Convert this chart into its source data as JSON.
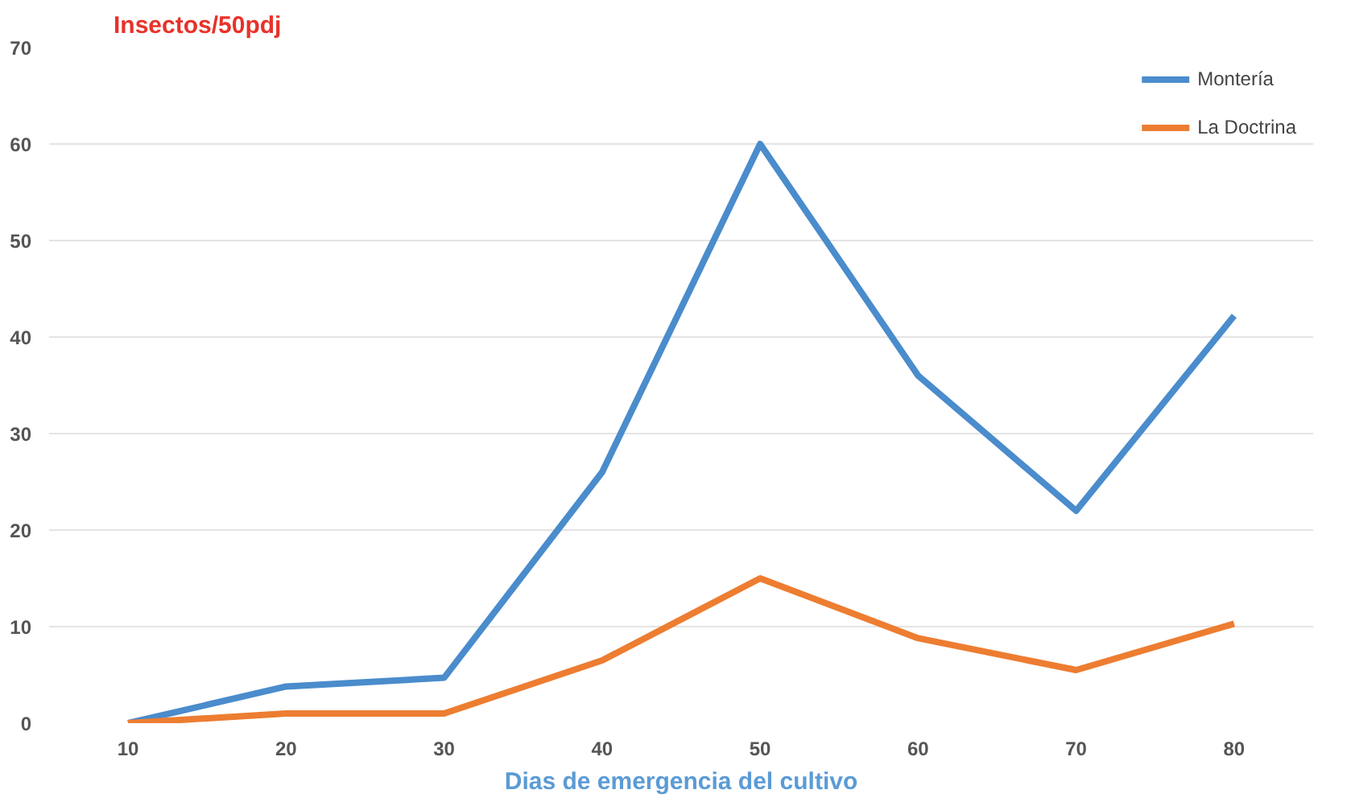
{
  "chart_data": {
    "type": "line",
    "ylabel": "Insectos/50pdj",
    "xlabel": "Dias de emergencia del cultivo",
    "x": [
      10,
      20,
      30,
      40,
      50,
      60,
      70,
      80
    ],
    "series": [
      {
        "name": "Montería",
        "color": "#4a8ccc",
        "values": [
          0,
          3.8,
          4.7,
          26,
          60,
          36,
          22,
          42.2
        ]
      },
      {
        "name": "La Doctrina",
        "color": "#ed7d31",
        "values": [
          0,
          1,
          1,
          6.5,
          15,
          8.8,
          5.5,
          10.3
        ]
      }
    ],
    "xlim": [
      5,
      85
    ],
    "xticks": [
      10,
      20,
      30,
      40,
      50,
      60,
      70,
      80
    ],
    "ylim": [
      0,
      70
    ],
    "yticks": [
      0,
      10,
      20,
      30,
      40,
      50,
      60,
      70
    ],
    "grid": "y",
    "legend": "top right",
    "line_style": "solid",
    "marker": "none"
  }
}
